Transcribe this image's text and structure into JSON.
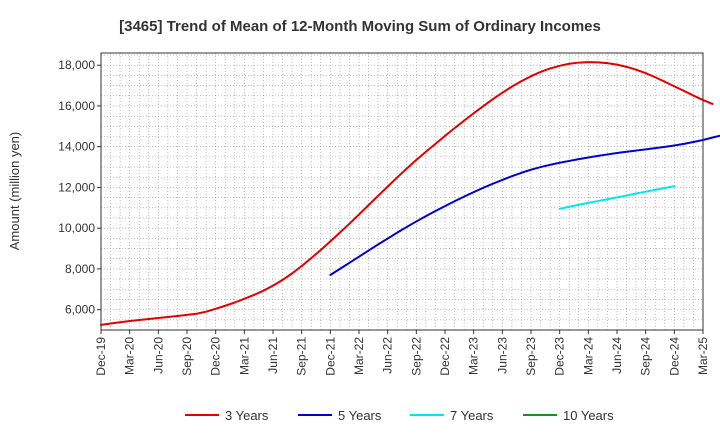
{
  "chart_data": {
    "type": "line",
    "title": "[3465]  Trend of Mean of 12-Month Moving Sum of Ordinary Incomes",
    "xlabel": "",
    "ylabel": "Amount (million yen)",
    "x_ticks": [
      "Dec-19",
      "Mar-20",
      "Jun-20",
      "Sep-20",
      "Dec-20",
      "Mar-21",
      "Jun-21",
      "Sep-21",
      "Dec-21",
      "Mar-22",
      "Jun-22",
      "Sep-22",
      "Dec-22",
      "Mar-23",
      "Jun-23",
      "Sep-23",
      "Dec-23",
      "Mar-24",
      "Jun-24",
      "Sep-24",
      "Dec-24",
      "Mar-25"
    ],
    "y_ticks": [
      6000,
      8000,
      10000,
      12000,
      14000,
      16000,
      18000
    ],
    "y_tick_labels": [
      "6,000",
      "8,000",
      "10,000",
      "12,000",
      "14,000",
      "16,000",
      "18,000"
    ],
    "ylim": [
      5000,
      18600
    ],
    "grid": true,
    "legend_position": "bottom",
    "series": [
      {
        "name": "3 Years",
        "color": "#e00000",
        "start_index": 0,
        "values": [
          5250,
          5320,
          5380,
          5440,
          5490,
          5540,
          5590,
          5640,
          5690,
          5740,
          5800,
          5900,
          6040,
          6190,
          6350,
          6530,
          6720,
          6930,
          7180,
          7460,
          7780,
          8140,
          8530,
          8930,
          9350,
          9780,
          10220,
          10670,
          11130,
          11590,
          12040,
          12490,
          12930,
          13350,
          13750,
          14140,
          14530,
          14910,
          15280,
          15640,
          15990,
          16330,
          16650,
          16950,
          17220,
          17460,
          17670,
          17840,
          17970,
          18070,
          18130,
          18150,
          18140,
          18100,
          18030,
          17920,
          17780,
          17610,
          17410,
          17190,
          16960,
          16740,
          16510,
          16290,
          16100
        ]
      },
      {
        "name": "5 Years",
        "color": "#0000cc",
        "start_index": 24,
        "values": [
          7700,
          8000,
          8300,
          8600,
          8900,
          9200,
          9490,
          9780,
          10060,
          10330,
          10590,
          10840,
          11080,
          11320,
          11550,
          11770,
          11980,
          12180,
          12370,
          12550,
          12720,
          12870,
          13000,
          13110,
          13210,
          13300,
          13390,
          13470,
          13550,
          13620,
          13690,
          13750,
          13810,
          13870,
          13930,
          13990,
          14060,
          14140,
          14230,
          14330,
          14450,
          14560
        ]
      },
      {
        "name": "7 Years",
        "color": "#00e5ee",
        "start_index": 48,
        "values": [
          10950,
          11050,
          11150,
          11240,
          11330,
          11420,
          11510,
          11600,
          11700,
          11790,
          11880,
          11970,
          12060
        ]
      },
      {
        "name": "10 Years",
        "color": "#228b22",
        "start_index": 0,
        "values": []
      }
    ]
  }
}
